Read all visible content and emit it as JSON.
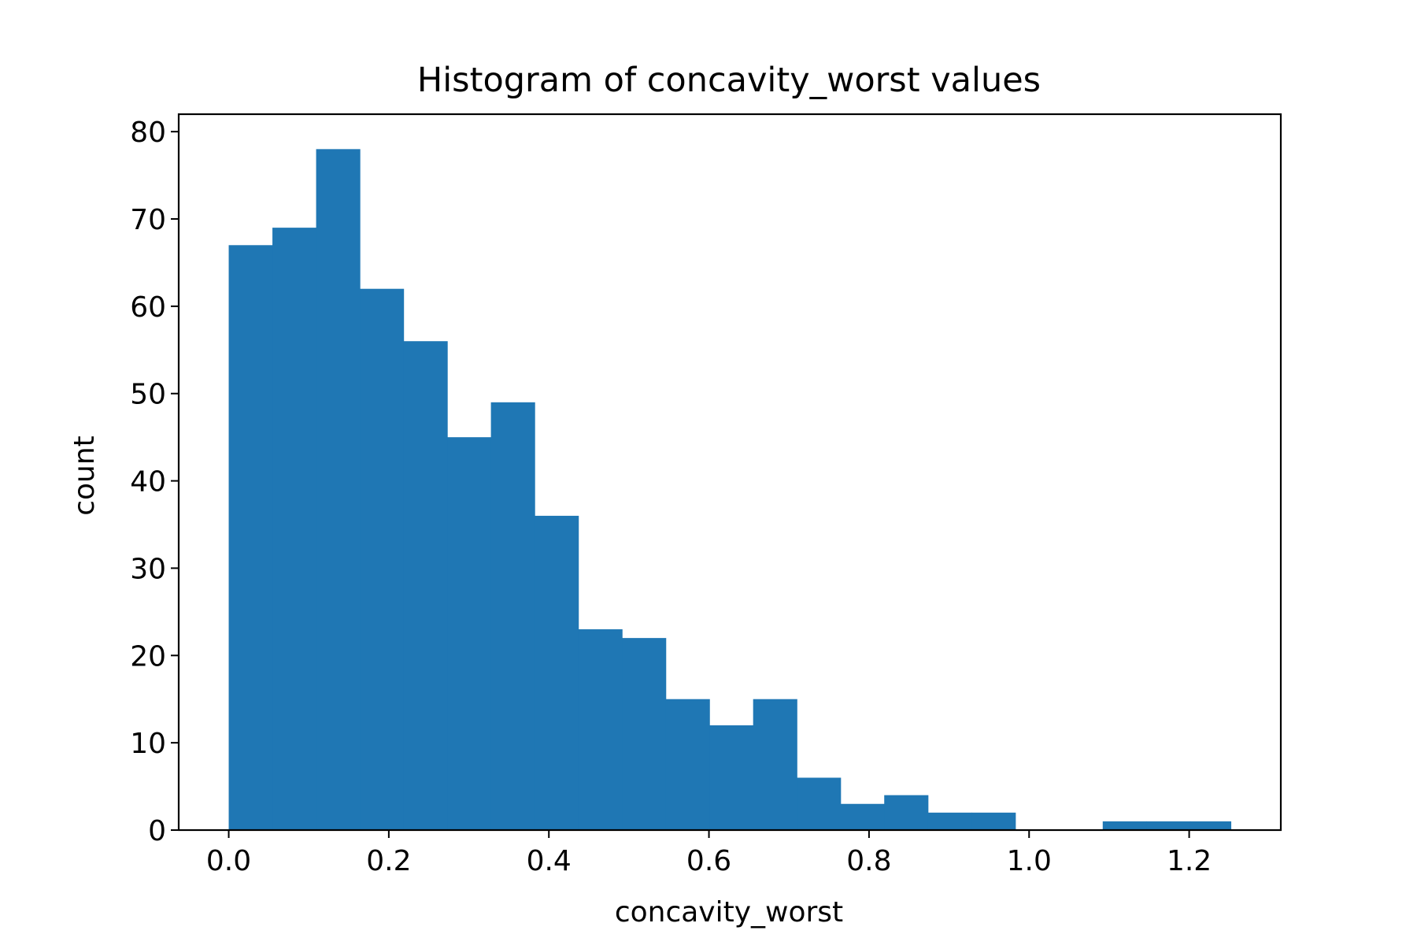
{
  "chart_data": {
    "type": "bar",
    "title": "Histogram of concavity_worst values",
    "xlabel": "concavity_worst",
    "ylabel": "count",
    "xlim": [
      -0.0625,
      1.3145
    ],
    "ylim": [
      0,
      82
    ],
    "grid": false,
    "bar_color": "#1f77b4",
    "bin_edges": [
      0.0,
      0.0546,
      0.1092,
      0.1638,
      0.2184,
      0.273,
      0.3276,
      0.3822,
      0.4368,
      0.4914,
      0.546,
      0.6006,
      0.6552,
      0.7098,
      0.7644,
      0.819,
      0.8736,
      0.9282,
      0.9828,
      1.0374,
      1.092,
      1.1466,
      1.2012,
      1.252
    ],
    "counts": [
      67,
      69,
      78,
      62,
      56,
      45,
      49,
      36,
      23,
      22,
      15,
      12,
      15,
      6,
      3,
      4,
      2,
      2,
      0,
      0,
      1,
      1,
      1
    ],
    "x_ticks": [
      {
        "value": 0.0,
        "label": "0.0"
      },
      {
        "value": 0.2,
        "label": "0.2"
      },
      {
        "value": 0.4,
        "label": "0.4"
      },
      {
        "value": 0.6,
        "label": "0.6"
      },
      {
        "value": 0.8,
        "label": "0.8"
      },
      {
        "value": 1.0,
        "label": "1.0"
      },
      {
        "value": 1.2,
        "label": "1.2"
      }
    ],
    "y_ticks": [
      {
        "value": 0,
        "label": "0"
      },
      {
        "value": 10,
        "label": "10"
      },
      {
        "value": 20,
        "label": "20"
      },
      {
        "value": 30,
        "label": "30"
      },
      {
        "value": 40,
        "label": "40"
      },
      {
        "value": 50,
        "label": "50"
      },
      {
        "value": 60,
        "label": "60"
      },
      {
        "value": 70,
        "label": "70"
      },
      {
        "value": 80,
        "label": "80"
      }
    ]
  }
}
